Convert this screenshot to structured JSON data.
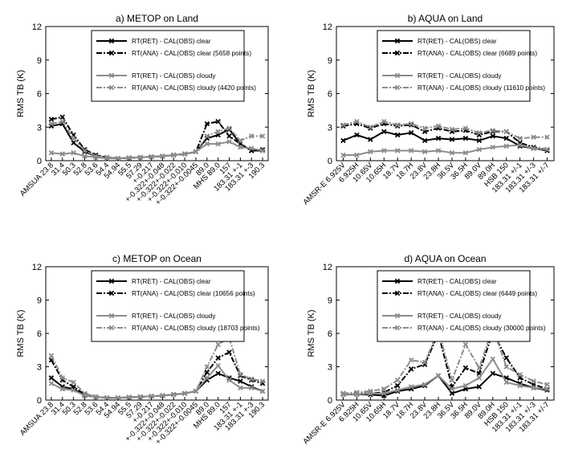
{
  "chart_data": [
    {
      "id": "a",
      "type": "line",
      "title": "a) METOP on Land",
      "ylabel": "RMS TB (K)",
      "ylim": [
        0,
        12
      ],
      "yticks": [
        0,
        3,
        6,
        9,
        12
      ],
      "categories": [
        "AMSUA 23.8",
        "31.4",
        "50.3",
        "52.8",
        "53.6",
        "54.4",
        "54.94",
        "55.5",
        "57.29",
        "+-0.217",
        "+-0.322+-0.048",
        "+-0.322+-0.022",
        "+-0.322+-0.010",
        "+-0.322+-0.0045",
        "89.0",
        "MHS 89.0",
        "157",
        "183.31 +-1",
        "183.31 +-3",
        "190.3"
      ],
      "legend": "top-right",
      "series": [
        {
          "name": "RT(RET) - CAL(OBS) clear",
          "style": "clear_ret",
          "values": [
            3.1,
            3.3,
            1.6,
            0.8,
            0.4,
            0.3,
            0.2,
            0.25,
            0.3,
            0.35,
            0.4,
            0.5,
            0.6,
            0.8,
            2.0,
            2.3,
            2.8,
            1.5,
            0.9,
            0.9
          ]
        },
        {
          "name": "RT(ANA) - CAL(OBS) clear (5658 points)",
          "style": "clear_ana",
          "values": [
            3.7,
            3.9,
            2.3,
            1.0,
            0.5,
            0.3,
            0.2,
            0.25,
            0.3,
            0.35,
            0.4,
            0.5,
            0.6,
            0.8,
            3.3,
            3.5,
            2.2,
            1.5,
            0.9,
            1.0
          ]
        },
        {
          "name": "RT(RET) - CAL(OBS) cloudy",
          "style": "cloudy_ret",
          "values": [
            0.7,
            0.6,
            0.7,
            0.4,
            0.3,
            0.2,
            0.2,
            0.25,
            0.3,
            0.35,
            0.4,
            0.5,
            0.6,
            0.8,
            1.5,
            1.5,
            1.7,
            1.2,
            1.1,
            0.9
          ]
        },
        {
          "name": "RT(ANA) - CAL(OBS) cloudy (4420 points)",
          "style": "cloudy_ana",
          "values": [
            3.3,
            3.5,
            2.0,
            0.9,
            0.4,
            0.3,
            0.2,
            0.25,
            0.3,
            0.35,
            0.4,
            0.5,
            0.6,
            0.8,
            2.2,
            2.6,
            2.9,
            1.8,
            2.2,
            2.2
          ]
        }
      ]
    },
    {
      "id": "b",
      "type": "line",
      "title": "b) AQUA on Land",
      "ylabel": "RMS TB (K)",
      "ylim": [
        0,
        12
      ],
      "yticks": [
        0,
        3,
        6,
        9,
        12
      ],
      "categories": [
        "AMSR-E 6.925V",
        "6.925H",
        "10.65V",
        "10.65H",
        "18.7V",
        "18.7H",
        "23.8V",
        "23.8H",
        "36.5V",
        "36.5H",
        "89.0V",
        "89.0H",
        "HSB 150",
        "183.31 +/-1",
        "183.31 +/-3",
        "183.31 +/-7"
      ],
      "legend": "top-right",
      "series": [
        {
          "name": "RT(RET) - CAL(OBS) clear",
          "style": "clear_ret",
          "values": [
            1.8,
            2.3,
            1.9,
            2.6,
            2.3,
            2.5,
            1.8,
            2.0,
            1.9,
            2.0,
            1.8,
            2.2,
            2.0,
            1.3,
            1.1,
            0.9
          ]
        },
        {
          "name": "RT(ANA) - CAL(OBS) clear (6689 points)",
          "style": "clear_ana",
          "values": [
            3.1,
            3.3,
            2.9,
            3.3,
            3.1,
            3.2,
            2.6,
            2.9,
            2.6,
            2.7,
            2.3,
            2.6,
            2.6,
            1.6,
            1.2,
            1.0
          ]
        },
        {
          "name": "RT(RET) - CAL(OBS) cloudy",
          "style": "cloudy_ret",
          "values": [
            0.5,
            0.5,
            0.8,
            0.9,
            0.9,
            0.9,
            0.8,
            0.9,
            0.7,
            0.7,
            1.0,
            1.2,
            1.3,
            1.4,
            1.1,
            1.0
          ]
        },
        {
          "name": "RT(ANA) - CAL(OBS) cloudy (11610 points)",
          "style": "cloudy_ana",
          "values": [
            3.2,
            3.5,
            3.0,
            3.5,
            3.2,
            3.3,
            2.9,
            3.1,
            2.8,
            2.9,
            2.5,
            2.7,
            2.6,
            2.0,
            2.1,
            2.1
          ]
        }
      ]
    },
    {
      "id": "c",
      "type": "line",
      "title": "c) METOP on Ocean",
      "ylabel": "RMS TB (K)",
      "ylim": [
        0,
        12
      ],
      "yticks": [
        0,
        3,
        6,
        9,
        12
      ],
      "categories": [
        "AMSUA 23.8",
        "31.4",
        "50.3",
        "52.8",
        "53.6",
        "54.4",
        "54.94",
        "55.5",
        "57.29",
        "+-0.217",
        "+-0.322+-0.048",
        "+-0.322+-0.022",
        "+-0.322+-0.010",
        "+-0.322+-0.0045",
        "89.0",
        "MHS 89.0",
        "157",
        "183.31 +-1",
        "183.31 +-3",
        "190.3"
      ],
      "legend": "top-right",
      "series": [
        {
          "name": "RT(RET) - CAL(OBS) clear",
          "style": "clear_ret",
          "values": [
            2.0,
            1.2,
            1.0,
            0.4,
            0.3,
            0.2,
            0.2,
            0.25,
            0.3,
            0.35,
            0.4,
            0.5,
            0.6,
            0.8,
            1.8,
            2.4,
            2.0,
            1.7,
            1.2,
            0.8
          ]
        },
        {
          "name": "RT(ANA) - CAL(OBS) clear (10656 points)",
          "style": "clear_ana",
          "values": [
            3.6,
            1.8,
            1.2,
            0.5,
            0.3,
            0.2,
            0.2,
            0.25,
            0.3,
            0.35,
            0.4,
            0.5,
            0.6,
            0.8,
            2.5,
            3.8,
            4.3,
            2.2,
            1.8,
            1.5
          ]
        },
        {
          "name": "RT(RET) - CAL(OBS) cloudy",
          "style": "cloudy_ret",
          "values": [
            1.5,
            1.0,
            0.9,
            0.4,
            0.3,
            0.2,
            0.2,
            0.25,
            0.3,
            0.35,
            0.4,
            0.5,
            0.6,
            0.8,
            2.0,
            3.1,
            1.8,
            1.1,
            1.1,
            0.8
          ]
        },
        {
          "name": "RT(ANA) - CAL(OBS) cloudy (18703 points)",
          "style": "cloudy_ana",
          "values": [
            4.0,
            2.0,
            1.6,
            0.6,
            0.3,
            0.2,
            0.2,
            0.25,
            0.3,
            0.35,
            0.4,
            0.5,
            0.6,
            0.8,
            3.0,
            5.0,
            5.6,
            2.3,
            1.9,
            1.7
          ]
        }
      ]
    },
    {
      "id": "d",
      "type": "line",
      "title": "d) AQUA on Ocean",
      "ylabel": "RMS TB (K)",
      "ylim": [
        0,
        12
      ],
      "yticks": [
        0,
        3,
        6,
        9,
        12
      ],
      "categories": [
        "AMSR-E 6.925V",
        "6.925H",
        "10.65V",
        "10.65H",
        "18.7V",
        "18.7H",
        "23.8V",
        "23.8H",
        "36.5V",
        "36.5H",
        "89.0V",
        "89.0H",
        "HSB 150",
        "183.31 +/-1",
        "183.31 +/-3",
        "183.31 +/-7"
      ],
      "legend": "top-right",
      "series": [
        {
          "name": "RT(RET) - CAL(OBS) clear",
          "style": "clear_ret",
          "values": [
            0.5,
            0.5,
            0.5,
            0.4,
            0.8,
            1.0,
            1.3,
            2.2,
            0.6,
            1.0,
            1.2,
            2.4,
            2.0,
            1.5,
            1.1,
            0.9
          ]
        },
        {
          "name": "RT(ANA) - CAL(OBS) clear (6449 points)",
          "style": "clear_ana",
          "values": [
            0.6,
            0.6,
            0.6,
            0.7,
            1.3,
            2.8,
            3.2,
            6.0,
            1.2,
            2.9,
            2.4,
            6.1,
            3.8,
            2.0,
            1.4,
            1.0
          ]
        },
        {
          "name": "RT(RET) - CAL(OBS) cloudy",
          "style": "cloudy_ret",
          "values": [
            0.5,
            0.5,
            0.6,
            0.6,
            0.9,
            1.2,
            1.4,
            2.2,
            1.0,
            1.3,
            2.0,
            3.7,
            1.6,
            1.3,
            1.1,
            1.0
          ]
        },
        {
          "name": "RT(ANA) - CAL(OBS) cloudy (30000 points)",
          "style": "cloudy_ana",
          "values": [
            0.6,
            0.7,
            0.8,
            1.0,
            1.8,
            3.6,
            3.4,
            6.3,
            1.8,
            5.0,
            2.9,
            6.5,
            3.0,
            2.3,
            1.7,
            1.4
          ]
        }
      ]
    }
  ],
  "styles": {
    "clear_ret": {
      "color": "#000000",
      "dash": "",
      "width": 2
    },
    "clear_ana": {
      "color": "#000000",
      "dash": "7,2,2,2",
      "width": 2
    },
    "cloudy_ret": {
      "color": "#8c8c8c",
      "dash": "",
      "width": 2
    },
    "cloudy_ana": {
      "color": "#8c8c8c",
      "dash": "7,2,2,2",
      "width": 2
    }
  }
}
